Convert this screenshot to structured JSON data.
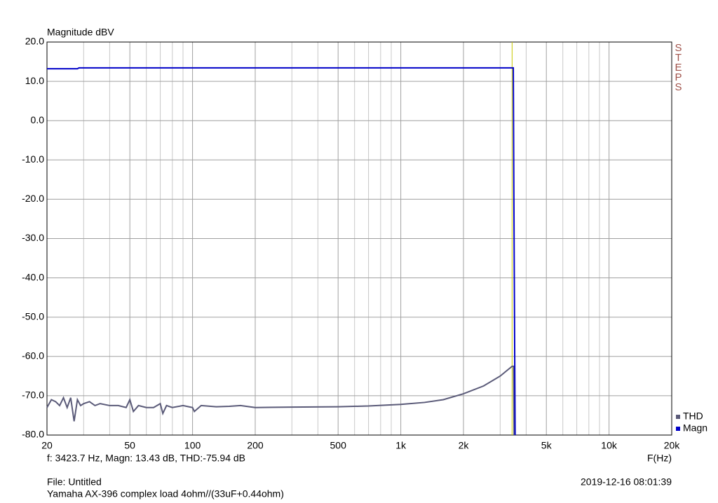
{
  "chart_data": {
    "type": "line",
    "y_label": "Magnitude dBV",
    "x_label": "F(Hz)",
    "side_label": "STEPS",
    "readout": "f: 3423.7 Hz, Magn: 13.43 dB, THD:-75.94  dB",
    "file": "File: Untitled",
    "description": "Yamaha AX-396 complex load 4ohm//(33uF+0.44ohm)",
    "timestamp": "2019-12-16 08:01:39",
    "xscale": "log",
    "grid": true,
    "xlim": [
      20,
      20000
    ],
    "ylim": [
      -80,
      20
    ],
    "xticks": [
      20,
      50,
      100,
      200,
      500,
      {
        "value": 1000,
        "label": "1k"
      },
      {
        "value": 2000,
        "label": "2k"
      },
      {
        "value": 5000,
        "label": "5k"
      },
      {
        "value": 10000,
        "label": "10k"
      },
      {
        "value": 20000,
        "label": "20k"
      }
    ],
    "xminorticks": [
      30,
      40,
      60,
      70,
      80,
      90,
      300,
      400,
      600,
      700,
      800,
      900,
      3000,
      4000,
      6000,
      7000,
      8000,
      9000
    ],
    "yticks": [
      {
        "value": -80,
        "label": "-80.0"
      },
      {
        "value": -70,
        "label": "-70.0"
      },
      {
        "value": -60,
        "label": "-60.0"
      },
      {
        "value": -50,
        "label": "-50.0"
      },
      {
        "value": -40,
        "label": "-40.0"
      },
      {
        "value": -30,
        "label": "-30.0"
      },
      {
        "value": -20,
        "label": "-20.0"
      },
      {
        "value": -10,
        "label": "-10.0"
      },
      {
        "value": 0,
        "label": "0.0"
      },
      {
        "value": 10,
        "label": "10.0"
      },
      {
        "value": 20,
        "label": "20.0"
      }
    ],
    "cursor": {
      "x": 3423.7,
      "color": "#c8c800"
    },
    "legend_position": "lower right",
    "series": [
      {
        "name": "THD",
        "color": "#5a5a78",
        "x": [
          20,
          21,
          22,
          23,
          24,
          25,
          26,
          27,
          28,
          29,
          30,
          32,
          34,
          36,
          40,
          44,
          48,
          50,
          52,
          55,
          60,
          65,
          70,
          72,
          75,
          80,
          90,
          100,
          102,
          110,
          130,
          150,
          170,
          200,
          300,
          500,
          700,
          1000,
          1300,
          1600,
          2000,
          2500,
          3000,
          3423.7,
          3480,
          3500
        ],
        "values": [
          -73,
          -71,
          -71.5,
          -72.5,
          -70.5,
          -73,
          -70.5,
          -76.5,
          -71,
          -72.5,
          -72,
          -71.5,
          -72.5,
          -72,
          -72.5,
          -72.5,
          -73,
          -71,
          -74,
          -72.5,
          -73,
          -73,
          -72,
          -74.5,
          -72.5,
          -73,
          -72.5,
          -73,
          -74,
          -72.5,
          -72.8,
          -72.7,
          -72.5,
          -73,
          -72.9,
          -72.8,
          -72.6,
          -72.2,
          -71.7,
          -71,
          -69.5,
          -67.5,
          -65,
          -62.5,
          -62.5,
          -80
        ]
      },
      {
        "name": "Magn",
        "color": "#0000c8",
        "x": [
          20,
          28,
          28.5,
          3423.7,
          3470,
          3490,
          3515,
          3540
        ],
        "values": [
          13.2,
          13.2,
          13.43,
          13.43,
          13.43,
          -17,
          -48,
          -80
        ]
      }
    ]
  }
}
